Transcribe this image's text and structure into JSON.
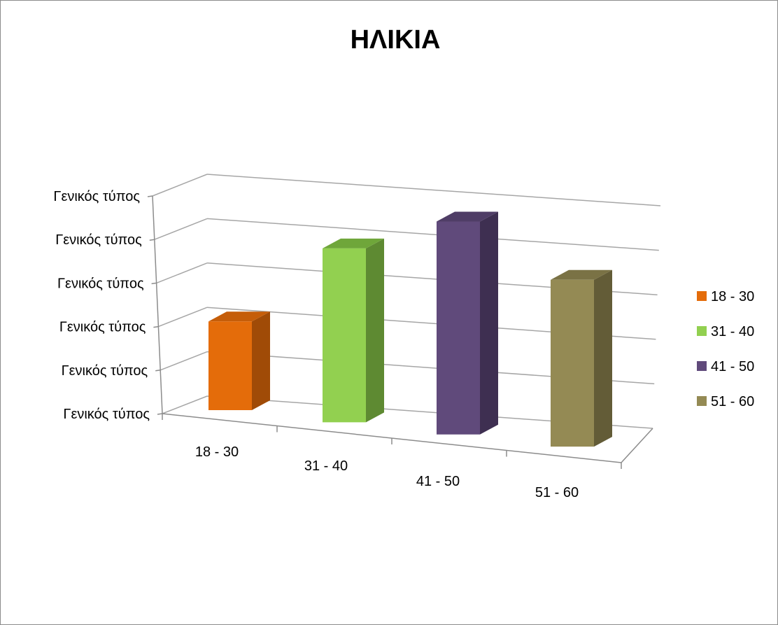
{
  "chart_data": {
    "type": "bar",
    "title": "ΗΛΙΚΙΑ",
    "categories": [
      "18 - 30",
      "31 - 40",
      "41 - 50",
      "51 - 60"
    ],
    "values": [
      2.0,
      4.0,
      5.0,
      4.0
    ],
    "ylim": [
      0,
      5
    ],
    "y_tick_labels": [
      "Γενικός τύπος",
      "Γενικός τύπος",
      "Γενικός τύπος",
      "Γενικός τύπος",
      "Γενικός τύπος",
      "Γενικός τύπος"
    ],
    "grid": true,
    "legend_position": "right",
    "legend": [
      {
        "label": "18 - 30",
        "color": "#E46C0A"
      },
      {
        "label": "31 - 40",
        "color": "#92D050"
      },
      {
        "label": "41 - 50",
        "color": "#604A7B"
      },
      {
        "label": "51 - 60",
        "color": "#948A54"
      }
    ],
    "colors": {
      "18 - 30": {
        "front": "#E46C0A",
        "side": "#A04B07",
        "top": "#C55D09"
      },
      "31 - 40": {
        "front": "#92D050",
        "side": "#5E8A32",
        "top": "#6FA63A"
      },
      "41 - 50": {
        "front": "#604A7B",
        "side": "#3E2F51",
        "top": "#4F3D66"
      },
      "51 - 60": {
        "front": "#948A54",
        "side": "#635C37",
        "top": "#7A7245"
      }
    }
  }
}
